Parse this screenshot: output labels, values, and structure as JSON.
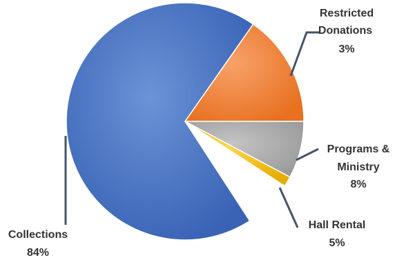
{
  "chart_data": {
    "type": "pie",
    "title": "",
    "slices": [
      {
        "label": "Collections",
        "value": 84,
        "percent_label": "84%",
        "color": "#4472c4"
      },
      {
        "label": "Restricted Donations",
        "value": 3,
        "percent_label": "3%",
        "color": "#ed7d31"
      },
      {
        "label": "Programs & Ministry",
        "value": 8,
        "percent_label": "8%",
        "color": "#a5a5a5"
      },
      {
        "label": "Hall Rental",
        "value": 5,
        "percent_label": "5%",
        "color": "#ffc000"
      }
    ],
    "legend": "none"
  }
}
